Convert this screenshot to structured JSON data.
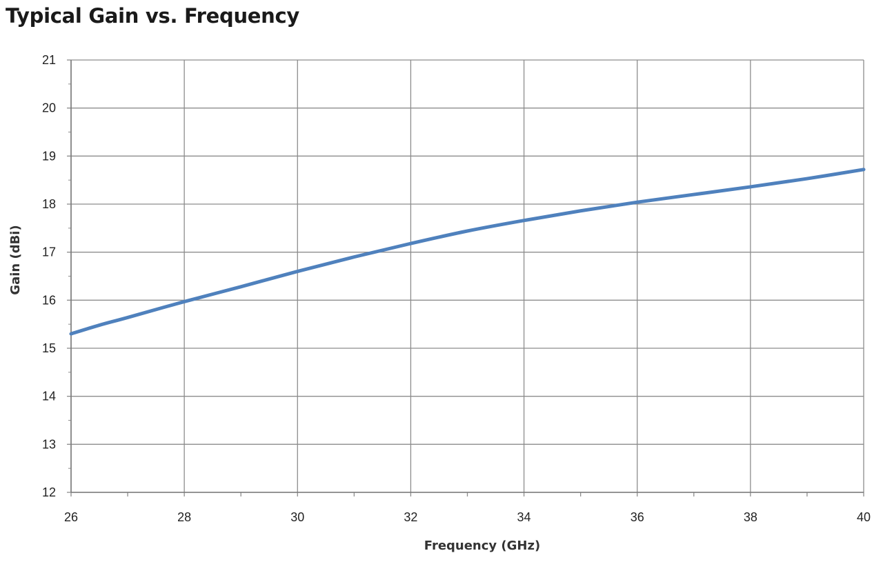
{
  "chart_data": {
    "type": "line",
    "title": "Typical Gain vs. Frequency",
    "xlabel": "Frequency (GHz)",
    "ylabel": "Gain (dBi)",
    "xlim": [
      26,
      40
    ],
    "ylim": [
      12,
      21
    ],
    "x_ticks": [
      26,
      28,
      30,
      32,
      34,
      36,
      38,
      40
    ],
    "y_ticks": [
      12,
      13,
      14,
      15,
      16,
      17,
      18,
      19,
      20,
      21
    ],
    "x_minor_step": 1,
    "grid": true,
    "legend": "none",
    "line_color": "#4f81bd",
    "series": [
      {
        "x": [
          26,
          26.5,
          27,
          28,
          29,
          30,
          31,
          32,
          33,
          34,
          35,
          36,
          37,
          38,
          39,
          40
        ],
        "y": [
          15.3,
          15.48,
          15.64,
          15.97,
          16.28,
          16.6,
          16.9,
          17.18,
          17.44,
          17.66,
          17.86,
          18.04,
          18.2,
          18.36,
          18.53,
          18.72
        ]
      }
    ]
  }
}
